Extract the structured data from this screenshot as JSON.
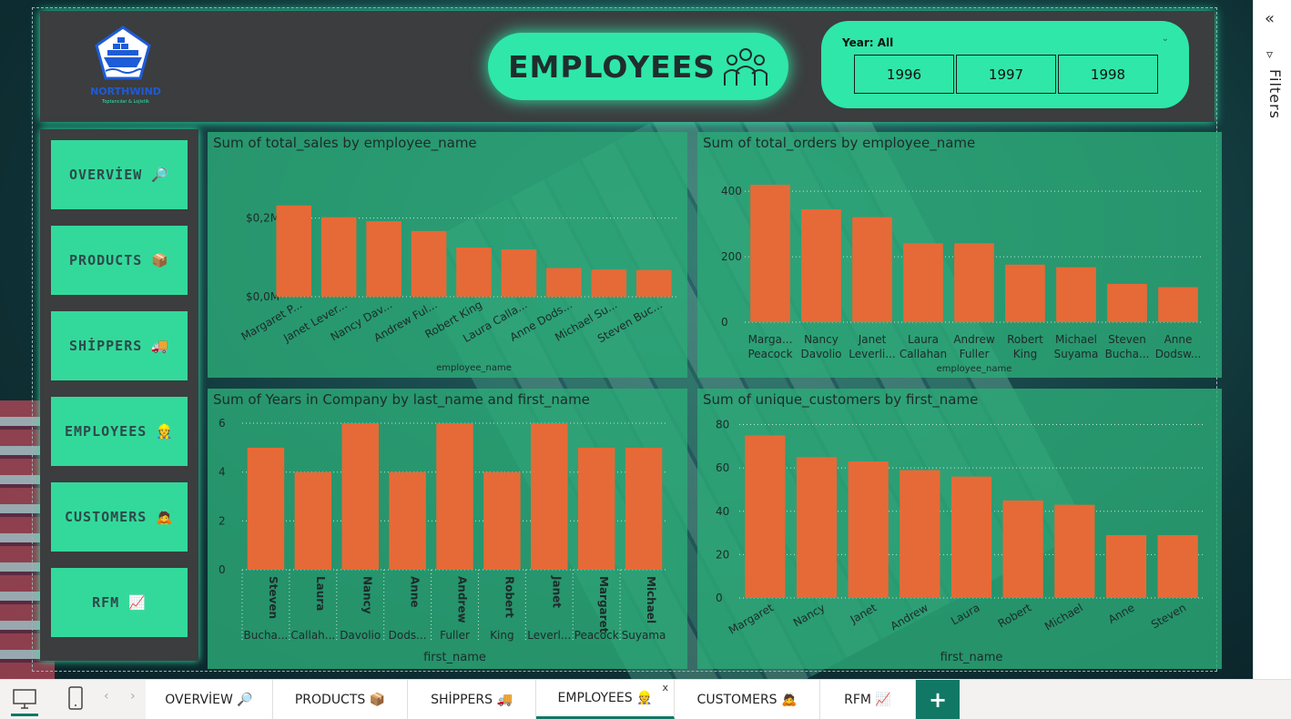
{
  "header": {
    "logo_name": "NORTHWIND",
    "logo_sub": "Toptancılar & Lojistik",
    "title": "EMPLOYEES",
    "year_filter": {
      "label": "Year: All",
      "options": [
        "1996",
        "1997",
        "1998"
      ]
    }
  },
  "nav": {
    "items": [
      {
        "label": "OVERVİEW 🔎"
      },
      {
        "label": "PRODUCTS 📦"
      },
      {
        "label": "SHİPPERS 🚚"
      },
      {
        "label": "EMPLOYEES 👷"
      },
      {
        "label": "CUSTOMERS 🙇"
      },
      {
        "label": "RFM 📈"
      }
    ]
  },
  "filters_panel": {
    "label": "Filters"
  },
  "tabs": {
    "items": [
      {
        "label": "OVERVİEW 🔎"
      },
      {
        "label": "PRODUCTS 📦"
      },
      {
        "label": "SHİPPERS 🚚"
      },
      {
        "label": "EMPLOYEES 👷"
      },
      {
        "label": "CUSTOMERS 🙇"
      },
      {
        "label": "RFM 📈"
      }
    ],
    "active": "EMPLOYEES 👷",
    "close": "x",
    "add": "+"
  },
  "colors": {
    "accent": "#2fe7a8",
    "bar": "#e66a37",
    "chart_bg": "#2caa78",
    "header_bg": "#3b3d3f",
    "tab_accent": "#117865"
  },
  "chart_data": [
    {
      "type": "bar",
      "title": "Sum of total_sales by employee_name",
      "xlabel": "employee_name",
      "categories": [
        "Margaret P...",
        "Janet Lever...",
        "Nancy Dav...",
        "Andrew Ful...",
        "Robert King",
        "Laura Calla...",
        "Anne Dods...",
        "Michael Su...",
        "Steven Buc..."
      ],
      "values": [
        0.232,
        0.202,
        0.192,
        0.167,
        0.125,
        0.12,
        0.073,
        0.069,
        0.068
      ],
      "ylim": [
        0,
        0.28
      ],
      "yticks": [
        {
          "v": 0,
          "label": "$0,0M"
        },
        {
          "v": 0.2,
          "label": "$0,2M"
        }
      ],
      "grid": true
    },
    {
      "type": "bar",
      "title": "Sum of total_orders by employee_name",
      "xlabel": "employee_name",
      "categories": [
        [
          "Marga...",
          "Peacock"
        ],
        [
          "Nancy",
          "Davolio"
        ],
        [
          "Janet",
          "Leverli..."
        ],
        [
          "Laura",
          "Callahan"
        ],
        [
          "Andrew",
          "Fuller"
        ],
        [
          "Robert",
          "King"
        ],
        [
          "Michael",
          "Suyama"
        ],
        [
          "Steven",
          "Bucha..."
        ],
        [
          "Anne",
          "Dodsw..."
        ]
      ],
      "values": [
        420,
        345,
        321,
        241,
        241,
        176,
        168,
        117,
        107
      ],
      "ylim": [
        0,
        470
      ],
      "yticks": [
        {
          "v": 0,
          "label": "0"
        },
        {
          "v": 200,
          "label": "200"
        },
        {
          "v": 400,
          "label": "400"
        }
      ],
      "grid": true
    },
    {
      "type": "bar",
      "title": "Sum of Years in Company by last_name and first_name",
      "xlabel": "first_name",
      "categories": [
        [
          "Steven",
          "Bucha..."
        ],
        [
          "Laura",
          "Callah..."
        ],
        [
          "Nancy",
          "Davolio"
        ],
        [
          "Anne",
          "Dods..."
        ],
        [
          "Andrew",
          "Fuller"
        ],
        [
          "Robert",
          "King"
        ],
        [
          "Janet",
          "Leverl..."
        ],
        [
          "Margaret",
          "Peacock"
        ],
        [
          "Michael",
          "Suyama"
        ]
      ],
      "values": [
        5,
        4,
        6,
        4,
        6,
        4,
        6,
        5,
        5
      ],
      "ylim": [
        0,
        6.3
      ],
      "yticks": [
        {
          "v": 0,
          "label": "0"
        },
        {
          "v": 2,
          "label": "2"
        },
        {
          "v": 4,
          "label": "4"
        },
        {
          "v": 6,
          "label": "6"
        }
      ],
      "grid": true
    },
    {
      "type": "bar",
      "title": "Sum of unique_customers by first_name",
      "xlabel": "first_name",
      "categories": [
        "Margaret",
        "Nancy",
        "Janet",
        "Andrew",
        "Laura",
        "Robert",
        "Michael",
        "Anne",
        "Steven"
      ],
      "values": [
        75,
        65,
        63,
        59,
        56,
        45,
        43,
        29,
        29
      ],
      "ylim": [
        0,
        84
      ],
      "yticks": [
        {
          "v": 0,
          "label": "0"
        },
        {
          "v": 20,
          "label": "20"
        },
        {
          "v": 40,
          "label": "40"
        },
        {
          "v": 60,
          "label": "60"
        },
        {
          "v": 80,
          "label": "80"
        }
      ],
      "grid": true
    }
  ]
}
